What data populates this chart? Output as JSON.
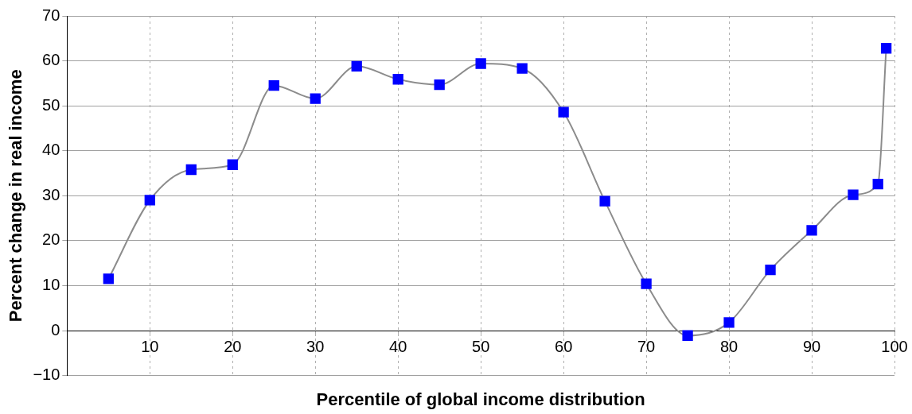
{
  "chart_data": {
    "type": "line",
    "xlabel": "Percentile of global income distribution",
    "ylabel": "Percent change in real income",
    "x": [
      5,
      10,
      15,
      20,
      25,
      30,
      35,
      40,
      45,
      50,
      55,
      60,
      65,
      70,
      75,
      80,
      85,
      90,
      95,
      98,
      99
    ],
    "series": [
      {
        "color": "#0000ff",
        "values": [
          11.5,
          29,
          35.8,
          36.9,
          54.5,
          51.6,
          58.8,
          55.9,
          54.7,
          59.4,
          58.3,
          48.6,
          28.8,
          10.4,
          -1.1,
          1.8,
          13.5,
          22.3,
          30.2,
          32.6,
          62.8
        ]
      }
    ],
    "xlim": [
      0,
      100
    ],
    "xticks": [
      10,
      20,
      30,
      40,
      50,
      60,
      70,
      80,
      90,
      100
    ],
    "ylim": [
      -10,
      70
    ],
    "yticks": [
      -10,
      0,
      10,
      20,
      30,
      40,
      50,
      60,
      70
    ],
    "grid": true,
    "legend": false,
    "marker": "square",
    "line_style": "solid"
  }
}
